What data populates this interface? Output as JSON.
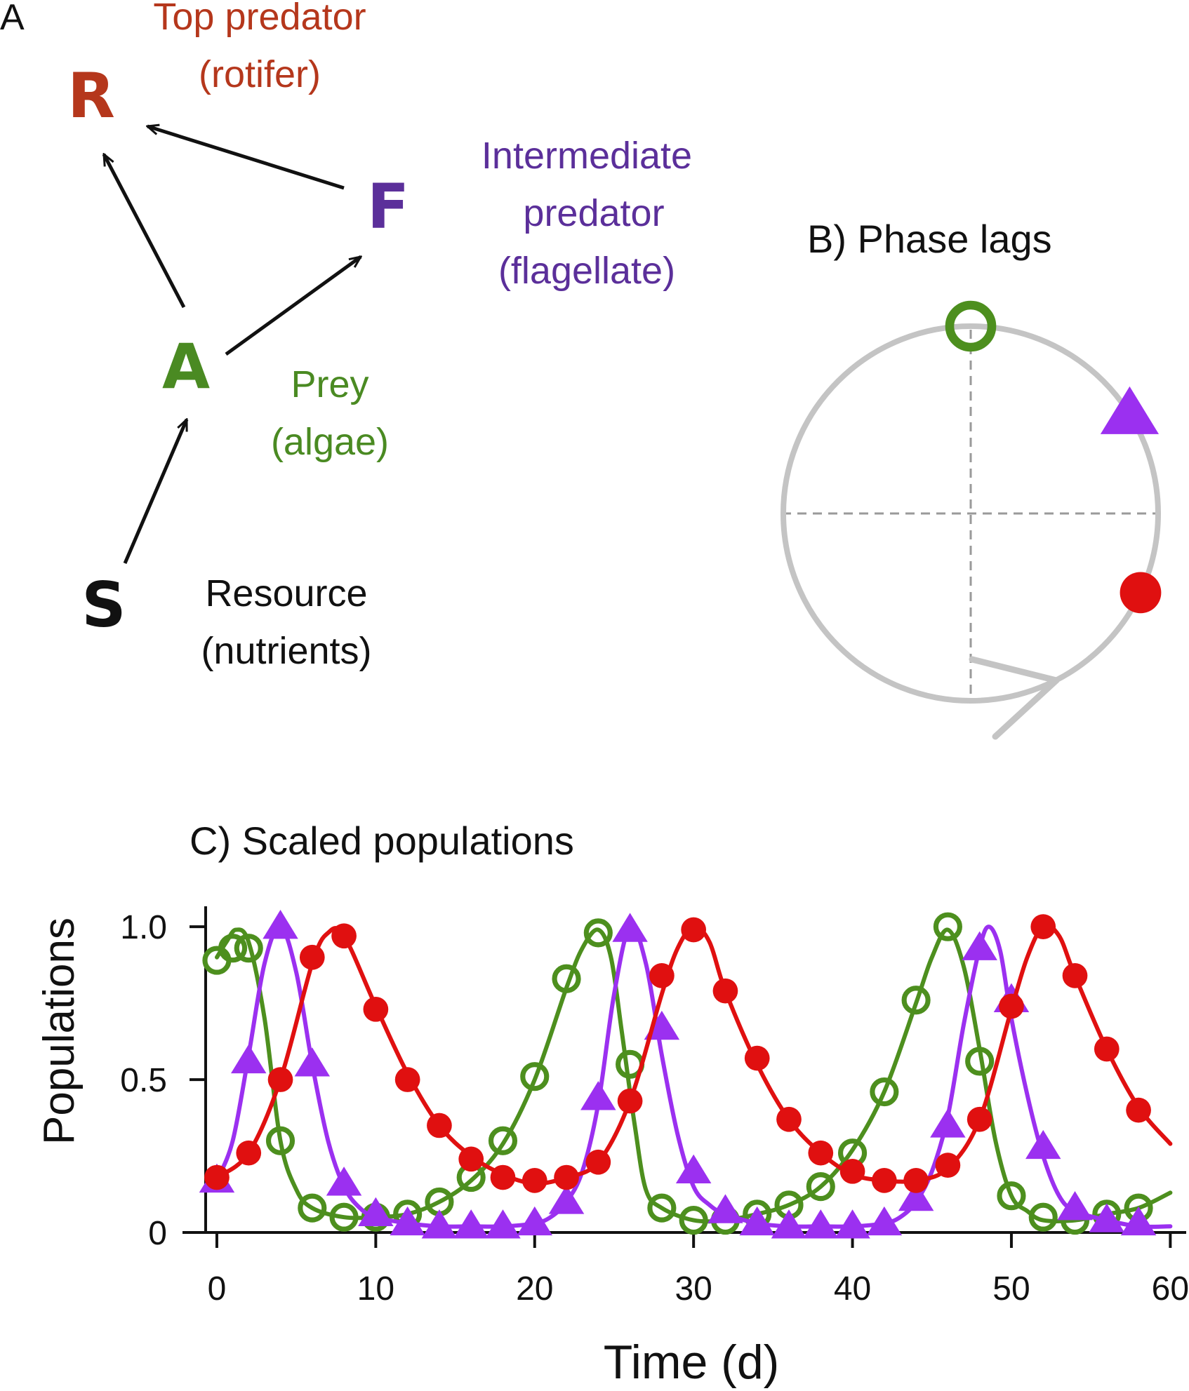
{
  "colors": {
    "rotifer": "#b5371c",
    "flagellate": "#5b2f9a",
    "algae": "#4a8a22",
    "resource": "#111111",
    "algae_series": "#4d8f1e",
    "flag_series": "#9b30f0",
    "rot_series": "#e01010",
    "cycle": "#c4c4c4",
    "guide": "#9a9a9a"
  },
  "panel_a": {
    "label": "A",
    "nodes": {
      "R": {
        "symbol": "R",
        "line1": "Top predator",
        "line2": "(rotifer)"
      },
      "F": {
        "symbol": "F",
        "line1": "Intermediate",
        "line2": "predator",
        "line3": "(flagellate)"
      },
      "A": {
        "symbol": "A",
        "line1": "Prey",
        "line2": "(algae)"
      },
      "S": {
        "symbol": "S",
        "line1": "Resource",
        "line2": "(nutrients)"
      }
    },
    "links": [
      {
        "from": "S",
        "to": "A"
      },
      {
        "from": "A",
        "to": "R"
      },
      {
        "from": "A",
        "to": "F"
      },
      {
        "from": "F",
        "to": "R"
      }
    ]
  },
  "panel_b": {
    "title": "B) Phase lags",
    "direction": "clockwise",
    "markers": [
      {
        "series": "algae",
        "marker": "open-circle",
        "angle_deg": 0
      },
      {
        "series": "flagellate",
        "marker": "triangle",
        "angle_deg": 58
      },
      {
        "series": "rotifer",
        "marker": "filled-circle",
        "angle_deg": 115
      }
    ]
  },
  "chart_data": {
    "type": "line",
    "title": "C) Scaled populations",
    "xlabel": "Time (d)",
    "ylabel": "Populations",
    "xlim": [
      -1.5,
      61
    ],
    "ylim": [
      0,
      1.06
    ],
    "x_ticks": [
      0,
      10,
      20,
      30,
      40,
      50,
      60
    ],
    "x_tick_labels": [
      "0",
      "10",
      "20",
      "30",
      "40",
      "50",
      "60"
    ],
    "y_ticks": [
      0,
      0.5,
      1.0
    ],
    "y_tick_labels": [
      "0",
      "0.5",
      "1.0"
    ],
    "series": [
      {
        "id": "algae",
        "marker": "open-circle",
        "line": [
          [
            0,
            0.9
          ],
          [
            0.6,
            0.95
          ],
          [
            1.2,
            0.99
          ],
          [
            2,
            0.95
          ],
          [
            3,
            0.7
          ],
          [
            4,
            0.3
          ],
          [
            5,
            0.14
          ],
          [
            6,
            0.08
          ],
          [
            8,
            0.05
          ],
          [
            10,
            0.05
          ],
          [
            12,
            0.06
          ],
          [
            14,
            0.1
          ],
          [
            16,
            0.17
          ],
          [
            18,
            0.29
          ],
          [
            20,
            0.5
          ],
          [
            22,
            0.8
          ],
          [
            23,
            0.93
          ],
          [
            24,
            0.99
          ],
          [
            24.8,
            0.9
          ],
          [
            25.5,
            0.65
          ],
          [
            26.3,
            0.35
          ],
          [
            27,
            0.14
          ],
          [
            28,
            0.08
          ],
          [
            30,
            0.04
          ],
          [
            32,
            0.04
          ],
          [
            34,
            0.06
          ],
          [
            36,
            0.09
          ],
          [
            38,
            0.15
          ],
          [
            40,
            0.27
          ],
          [
            42,
            0.46
          ],
          [
            44,
            0.75
          ],
          [
            45,
            0.9
          ],
          [
            46,
            0.99
          ],
          [
            47,
            0.87
          ],
          [
            48,
            0.6
          ],
          [
            49,
            0.3
          ],
          [
            50,
            0.12
          ],
          [
            51,
            0.07
          ],
          [
            52,
            0.04
          ],
          [
            54,
            0.04
          ],
          [
            56,
            0.06
          ],
          [
            58,
            0.08
          ],
          [
            60,
            0.13
          ]
        ],
        "points": [
          [
            0,
            0.89
          ],
          [
            1,
            0.93
          ],
          [
            2,
            0.93
          ],
          [
            4,
            0.3
          ],
          [
            6,
            0.08
          ],
          [
            8,
            0.05
          ],
          [
            10,
            0.05
          ],
          [
            12,
            0.06
          ],
          [
            14,
            0.1
          ],
          [
            16,
            0.18
          ],
          [
            18,
            0.3
          ],
          [
            20,
            0.51
          ],
          [
            22,
            0.83
          ],
          [
            24,
            0.98
          ],
          [
            26,
            0.55
          ],
          [
            28,
            0.08
          ],
          [
            30,
            0.04
          ],
          [
            32,
            0.04
          ],
          [
            34,
            0.06
          ],
          [
            36,
            0.09
          ],
          [
            38,
            0.15
          ],
          [
            40,
            0.26
          ],
          [
            42,
            0.46
          ],
          [
            44,
            0.76
          ],
          [
            46,
            1.0
          ],
          [
            48,
            0.56
          ],
          [
            50,
            0.12
          ],
          [
            52,
            0.05
          ],
          [
            54,
            0.04
          ],
          [
            56,
            0.06
          ],
          [
            58,
            0.08
          ]
        ]
      },
      {
        "id": "flagellate",
        "marker": "triangle",
        "line": [
          [
            0,
            0.17
          ],
          [
            1,
            0.3
          ],
          [
            2,
            0.58
          ],
          [
            3,
            0.88
          ],
          [
            4,
            1.0
          ],
          [
            5,
            0.85
          ],
          [
            6,
            0.55
          ],
          [
            7,
            0.3
          ],
          [
            8,
            0.15
          ],
          [
            9,
            0.08
          ],
          [
            10,
            0.05
          ],
          [
            12,
            0.03
          ],
          [
            14,
            0.02
          ],
          [
            16,
            0.02
          ],
          [
            18,
            0.02
          ],
          [
            20,
            0.03
          ],
          [
            21,
            0.05
          ],
          [
            22,
            0.1
          ],
          [
            23,
            0.2
          ],
          [
            24,
            0.42
          ],
          [
            25,
            0.78
          ],
          [
            26,
            1.0
          ],
          [
            27,
            0.88
          ],
          [
            28,
            0.58
          ],
          [
            29,
            0.32
          ],
          [
            30,
            0.15
          ],
          [
            31,
            0.09
          ],
          [
            32,
            0.06
          ],
          [
            34,
            0.03
          ],
          [
            36,
            0.02
          ],
          [
            38,
            0.02
          ],
          [
            40,
            0.02
          ],
          [
            42,
            0.03
          ],
          [
            43,
            0.05
          ],
          [
            44,
            0.1
          ],
          [
            45,
            0.2
          ],
          [
            46,
            0.38
          ],
          [
            47,
            0.68
          ],
          [
            48,
            0.93
          ],
          [
            48.6,
            1.0
          ],
          [
            49.3,
            0.92
          ],
          [
            50,
            0.7
          ],
          [
            51,
            0.45
          ],
          [
            52,
            0.25
          ],
          [
            53,
            0.12
          ],
          [
            54,
            0.07
          ],
          [
            56,
            0.04
          ],
          [
            58,
            0.02
          ],
          [
            60,
            0.02
          ]
        ],
        "points": [
          [
            0,
            0.17
          ],
          [
            2,
            0.56
          ],
          [
            4,
            1.0
          ],
          [
            6,
            0.55
          ],
          [
            8,
            0.16
          ],
          [
            10,
            0.06
          ],
          [
            12,
            0.03
          ],
          [
            14,
            0.02
          ],
          [
            16,
            0.02
          ],
          [
            18,
            0.02
          ],
          [
            20,
            0.03
          ],
          [
            22,
            0.1
          ],
          [
            24,
            0.44
          ],
          [
            26,
            0.99
          ],
          [
            28,
            0.67
          ],
          [
            30,
            0.2
          ],
          [
            32,
            0.07
          ],
          [
            34,
            0.03
          ],
          [
            36,
            0.02
          ],
          [
            38,
            0.02
          ],
          [
            40,
            0.02
          ],
          [
            42,
            0.03
          ],
          [
            44,
            0.11
          ],
          [
            46,
            0.35
          ],
          [
            48,
            0.93
          ],
          [
            50,
            0.76
          ],
          [
            52,
            0.28
          ],
          [
            54,
            0.08
          ],
          [
            56,
            0.04
          ],
          [
            58,
            0.03
          ]
        ]
      },
      {
        "id": "rotifer",
        "marker": "filled-circle",
        "line": [
          [
            0,
            0.18
          ],
          [
            2,
            0.26
          ],
          [
            4,
            0.5
          ],
          [
            6,
            0.88
          ],
          [
            7,
            0.98
          ],
          [
            8,
            0.97
          ],
          [
            10,
            0.74
          ],
          [
            12,
            0.52
          ],
          [
            14,
            0.35
          ],
          [
            16,
            0.25
          ],
          [
            18,
            0.19
          ],
          [
            20,
            0.16
          ],
          [
            22,
            0.18
          ],
          [
            24,
            0.23
          ],
          [
            26,
            0.43
          ],
          [
            28,
            0.78
          ],
          [
            29,
            0.93
          ],
          [
            30,
            1.0
          ],
          [
            31,
            0.95
          ],
          [
            32,
            0.79
          ],
          [
            34,
            0.55
          ],
          [
            36,
            0.37
          ],
          [
            38,
            0.26
          ],
          [
            40,
            0.19
          ],
          [
            42,
            0.17
          ],
          [
            44,
            0.17
          ],
          [
            46,
            0.21
          ],
          [
            48,
            0.37
          ],
          [
            50,
            0.73
          ],
          [
            51,
            0.9
          ],
          [
            52,
            1.0
          ],
          [
            53,
            0.97
          ],
          [
            54,
            0.84
          ],
          [
            56,
            0.6
          ],
          [
            58,
            0.41
          ],
          [
            60,
            0.29
          ]
        ],
        "points": [
          [
            0,
            0.18
          ],
          [
            2,
            0.26
          ],
          [
            4,
            0.5
          ],
          [
            6,
            0.9
          ],
          [
            8,
            0.97
          ],
          [
            10,
            0.73
          ],
          [
            12,
            0.5
          ],
          [
            14,
            0.35
          ],
          [
            16,
            0.24
          ],
          [
            18,
            0.18
          ],
          [
            20,
            0.17
          ],
          [
            22,
            0.18
          ],
          [
            24,
            0.23
          ],
          [
            26,
            0.43
          ],
          [
            28,
            0.84
          ],
          [
            30,
            0.99
          ],
          [
            32,
            0.79
          ],
          [
            34,
            0.57
          ],
          [
            36,
            0.37
          ],
          [
            38,
            0.26
          ],
          [
            40,
            0.2
          ],
          [
            42,
            0.17
          ],
          [
            44,
            0.17
          ],
          [
            46,
            0.22
          ],
          [
            48,
            0.37
          ],
          [
            50,
            0.74
          ],
          [
            52,
            1.0
          ],
          [
            54,
            0.84
          ],
          [
            56,
            0.6
          ],
          [
            58,
            0.4
          ]
        ]
      }
    ]
  }
}
